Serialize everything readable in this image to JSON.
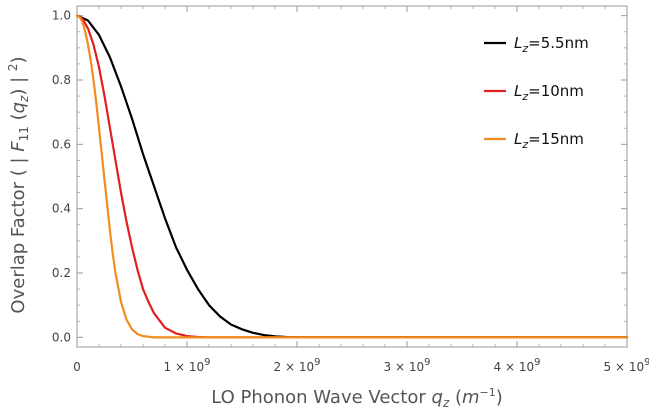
{
  "chart_data": {
    "type": "line",
    "title": "",
    "xlabel": {
      "prefix": "LO Phonon Wave Vector ",
      "var": "q",
      "var_sub": "z",
      "unit_open": " (",
      "unit": "m",
      "unit_sup": "−1",
      "unit_close": ")"
    },
    "ylabel": {
      "prefix": "Overlap Factor ( | ",
      "F": "F",
      "F_sub": "11",
      "paren_open": " (",
      "q": "q",
      "q_sub": "z",
      "close": ") | ",
      "sup": "2",
      "end": ")"
    },
    "xlim": [
      0,
      5000000000
    ],
    "ylim": [
      -0.03,
      1.03
    ],
    "x_ticks": [
      {
        "value": 0,
        "label": "0",
        "exp": ""
      },
      {
        "value": 1000000000,
        "label": "1 × 10",
        "exp": "9"
      },
      {
        "value": 2000000000,
        "label": "2 × 10",
        "exp": "9"
      },
      {
        "value": 3000000000,
        "label": "3 × 10",
        "exp": "9"
      },
      {
        "value": 4000000000,
        "label": "4 × 10",
        "exp": "9"
      },
      {
        "value": 5000000000,
        "label": "5 × 10",
        "exp": "9"
      }
    ],
    "y_ticks": [
      {
        "value": 0.0,
        "label": "0.0"
      },
      {
        "value": 0.2,
        "label": "0.2"
      },
      {
        "value": 0.4,
        "label": "0.4"
      },
      {
        "value": 0.6,
        "label": "0.6"
      },
      {
        "value": 0.8,
        "label": "0.8"
      },
      {
        "value": 1.0,
        "label": "1.0"
      }
    ],
    "legend_position": "top-right",
    "series": [
      {
        "name": "Lz=5.5nm",
        "legend": {
          "L": "L",
          "sub": "z",
          "rest": "=5.5nm"
        },
        "color": "#000000",
        "x": [
          0,
          100000000,
          200000000,
          300000000,
          400000000,
          500000000,
          600000000,
          700000000,
          800000000,
          900000000,
          1000000000,
          1100000000,
          1200000000,
          1300000000,
          1400000000,
          1500000000,
          1600000000,
          1700000000,
          1800000000,
          1900000000,
          2000000000,
          2200000000,
          2500000000,
          3000000000,
          4000000000,
          5000000000
        ],
        "y": [
          1.0,
          0.985,
          0.94,
          0.87,
          0.78,
          0.68,
          0.57,
          0.47,
          0.37,
          0.28,
          0.21,
          0.15,
          0.1,
          0.065,
          0.04,
          0.025,
          0.014,
          0.007,
          0.003,
          0.001,
          0.0,
          0.0,
          0.0,
          0.0,
          0.0,
          0.0
        ]
      },
      {
        "name": "Lz=10nm",
        "legend": {
          "L": "L",
          "sub": "z",
          "rest": "=10nm"
        },
        "color": "#e02020",
        "x": [
          0,
          50000000,
          100000000,
          150000000,
          200000000,
          250000000,
          300000000,
          350000000,
          400000000,
          450000000,
          500000000,
          550000000,
          600000000,
          650000000,
          700000000,
          800000000,
          900000000,
          1000000000,
          1100000000,
          1200000000,
          1300000000,
          1500000000,
          2000000000,
          3000000000,
          4000000000,
          5000000000
        ],
        "y": [
          1.0,
          0.99,
          0.96,
          0.91,
          0.84,
          0.75,
          0.65,
          0.55,
          0.45,
          0.36,
          0.28,
          0.21,
          0.15,
          0.11,
          0.075,
          0.03,
          0.012,
          0.004,
          0.001,
          0.0,
          0.0,
          0.0,
          0.0,
          0.0,
          0.0,
          0.0
        ]
      },
      {
        "name": "Lz=15nm",
        "legend": {
          "L": "L",
          "sub": "z",
          "rest": "=15nm"
        },
        "color": "#f28c1e",
        "x": [
          0,
          25000000,
          50000000,
          75000000,
          100000000,
          125000000,
          150000000,
          175000000,
          200000000,
          225000000,
          250000000,
          275000000,
          300000000,
          325000000,
          350000000,
          400000000,
          450000000,
          500000000,
          550000000,
          600000000,
          700000000,
          800000000,
          1000000000,
          1500000000,
          2000000000,
          3000000000,
          4000000000,
          5000000000
        ],
        "y": [
          1.0,
          0.995,
          0.98,
          0.95,
          0.91,
          0.86,
          0.8,
          0.73,
          0.65,
          0.57,
          0.49,
          0.41,
          0.33,
          0.26,
          0.2,
          0.11,
          0.055,
          0.025,
          0.01,
          0.004,
          0.0,
          0.0,
          0.0,
          0.0,
          0.0,
          0.0,
          0.0,
          0.0
        ]
      }
    ]
  }
}
